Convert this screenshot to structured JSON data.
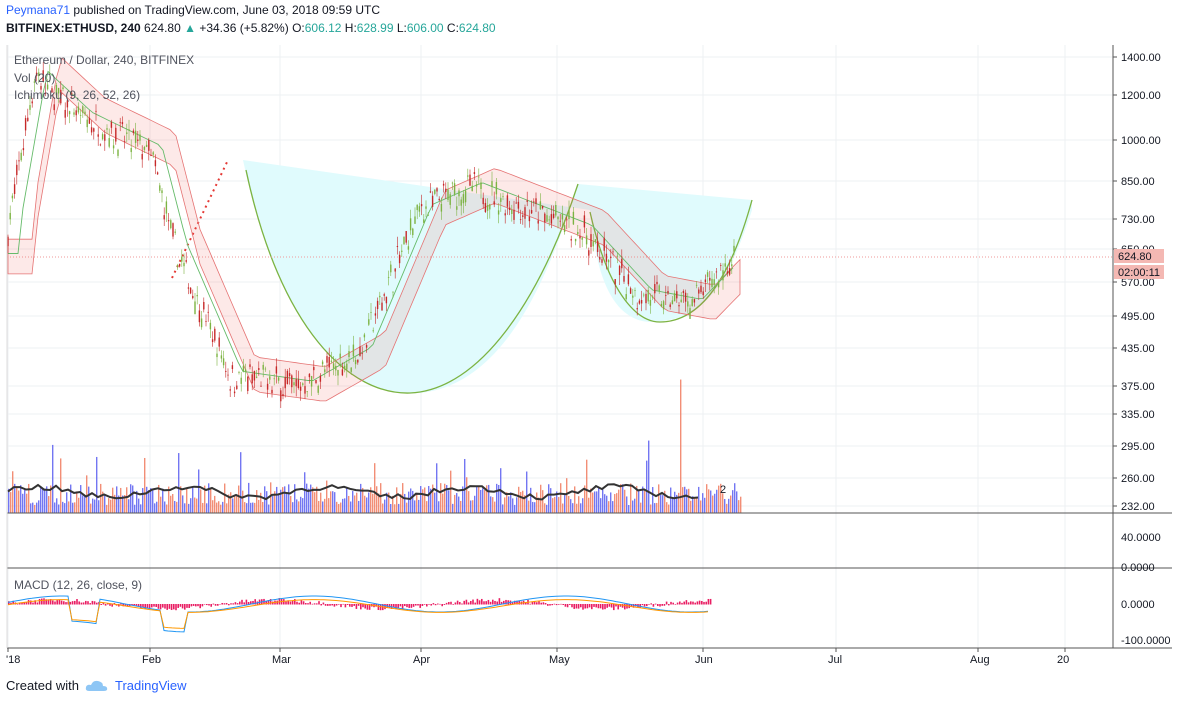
{
  "header": {
    "user": "Peymana71",
    "published": " published on TradingView.com, June 03, 2018 09:59 UTC",
    "symbol": "BITFINEX:ETHUSD, 240",
    "last": "624.80",
    "change": "+34.36 (+5.82%)",
    "o_label": "O:",
    "o": "606.12",
    "h_label": "H:",
    "h": "628.99",
    "l_label": "L:",
    "l": "606.00",
    "c_label": "C:",
    "c": "624.80"
  },
  "legends": {
    "title": "Ethereum / Dollar, 240, BITFINEX",
    "vol": "Vol (20)",
    "ichimoku": "Ichimoku (9, 26, 52, 26)",
    "macd": "MACD (12, 26, close, 9)"
  },
  "price_axis": [
    "1400.00",
    "1200.00",
    "1000.00",
    "850.00",
    "730.00",
    "650.00",
    "570.00",
    "495.00",
    "435.00",
    "375.00",
    "335.00",
    "295.00",
    "260.00",
    "232.00"
  ],
  "price_tag": "624.80",
  "timer_tag": "02:00:11",
  "mid_axis": [
    "40.0000",
    "0.0000"
  ],
  "macd_axis": [
    "0.0000",
    "-100.0000"
  ],
  "time_axis": [
    "'18",
    "Feb",
    "Mar",
    "Apr",
    "May",
    "Jun",
    "Jul",
    "Aug",
    "20"
  ],
  "footer": {
    "created": "Created with",
    "brand": "TradingView"
  },
  "colors": {
    "up": "#26a69a",
    "down": "#ef5350",
    "cup_fill": "#e0fbfd",
    "cup_line": "#7cb342",
    "vol_blue": "#5b5ef0",
    "vol_red": "#f07a5e",
    "macd_hist": "#e91e63"
  },
  "chart_data": {
    "type": "candlestick",
    "symbol": "ETHUSD",
    "exchange": "BITFINEX",
    "interval": "240",
    "price_scale": "log",
    "annotations": [
      "cup-and-handle pattern",
      "neckline",
      "dotted trendline"
    ],
    "current_price": 624.8,
    "ylim": [
      232,
      1400
    ],
    "path_x": [
      "'18",
      "Feb",
      "Mar",
      "Apr",
      "May",
      "Jun"
    ],
    "path_y": [
      700,
      1300,
      1100,
      960,
      650,
      390,
      375,
      430,
      760,
      830,
      700,
      540,
      520,
      625
    ],
    "volume_peak_label": "2",
    "macd_range": [
      -100,
      40
    ]
  }
}
